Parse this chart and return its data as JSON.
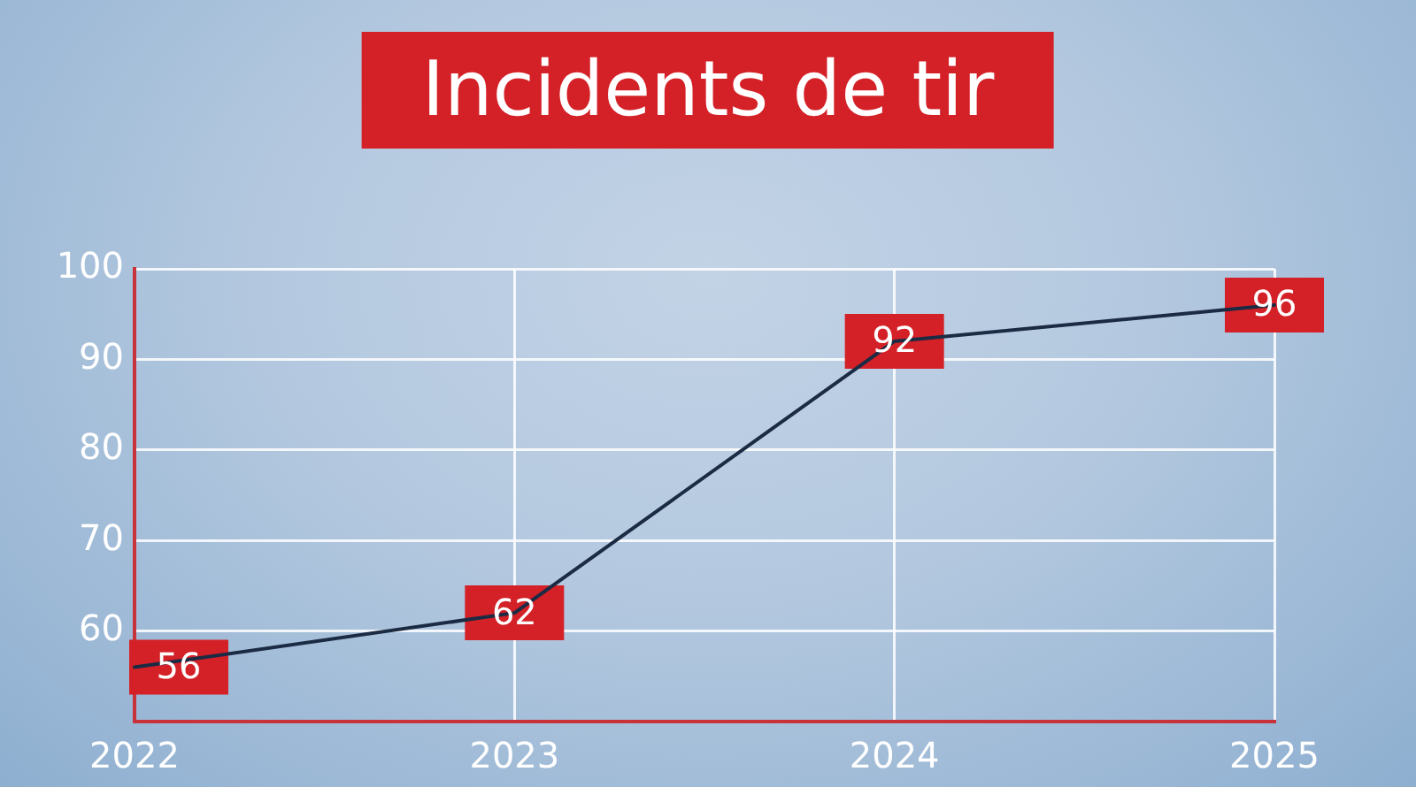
{
  "chart_data": {
    "type": "line",
    "title": "Incidents de tir",
    "categories": [
      "2022",
      "2023",
      "2024",
      "2025"
    ],
    "series": [
      {
        "color": "#1c2b44",
        "values": [
          56,
          62,
          92,
          96
        ]
      }
    ],
    "ylim": [
      50,
      100
    ],
    "yticks": [
      60,
      70,
      80,
      90,
      100
    ],
    "grid": true,
    "data_labels": true,
    "marker": "none",
    "legend": false
  }
}
